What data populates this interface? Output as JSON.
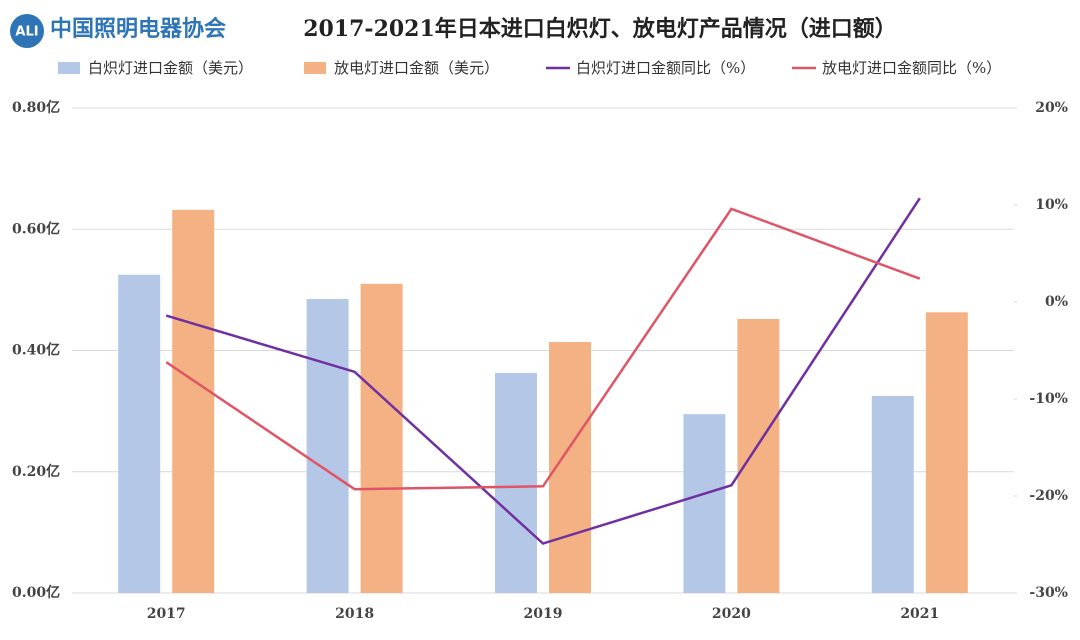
{
  "header": {
    "logo_mark": "ALI",
    "logo_text": "中国照明电器协会"
  },
  "chart_data": {
    "type": "bar-line",
    "title": "2017-2021年日本进口白炽灯、放电灯产品情况（进口额）",
    "categories": [
      "2017",
      "2018",
      "2019",
      "2020",
      "2021"
    ],
    "series": [
      {
        "name": "白炽灯进口金额（美元）",
        "color": "#b4c7e7",
        "kind": "bar",
        "values": [
          0.525,
          0.485,
          0.363,
          0.295,
          0.325
        ]
      },
      {
        "name": "放电灯进口金额（美元）",
        "color": "#f4b183",
        "kind": "bar",
        "values": [
          0.632,
          0.51,
          0.414,
          0.452,
          0.463
        ]
      },
      {
        "name": "白炽灯进口金额同比（%）",
        "color": "#7030a0",
        "kind": "line",
        "axis": "y2",
        "values": [
          -1.4,
          -7.2,
          -24.9,
          -18.9,
          10.7
        ]
      },
      {
        "name": "放电灯进口金额同比（%）",
        "color": "#e05565",
        "kind": "line",
        "axis": "y2",
        "values": [
          -6.2,
          -19.3,
          -19.0,
          9.6,
          2.4
        ]
      }
    ],
    "ylim": [
      0,
      0.8
    ],
    "yticks": [
      {
        "value": 0,
        "label": "0.00亿"
      },
      {
        "value": 0.2,
        "label": "0.20亿"
      },
      {
        "value": 0.4,
        "label": "0.40亿"
      },
      {
        "value": 0.6,
        "label": "0.60亿"
      },
      {
        "value": 0.8,
        "label": "0.80亿"
      }
    ],
    "y2lim": [
      -30,
      20
    ],
    "y2ticks": [
      {
        "value": -30,
        "label": "-30%"
      },
      {
        "value": -20,
        "label": "-20%"
      },
      {
        "value": -10,
        "label": "-10%"
      },
      {
        "value": 0,
        "label": "0%"
      },
      {
        "value": 10,
        "label": "10%"
      },
      {
        "value": 20,
        "label": "20%"
      }
    ],
    "grid": true,
    "legend": "top"
  }
}
